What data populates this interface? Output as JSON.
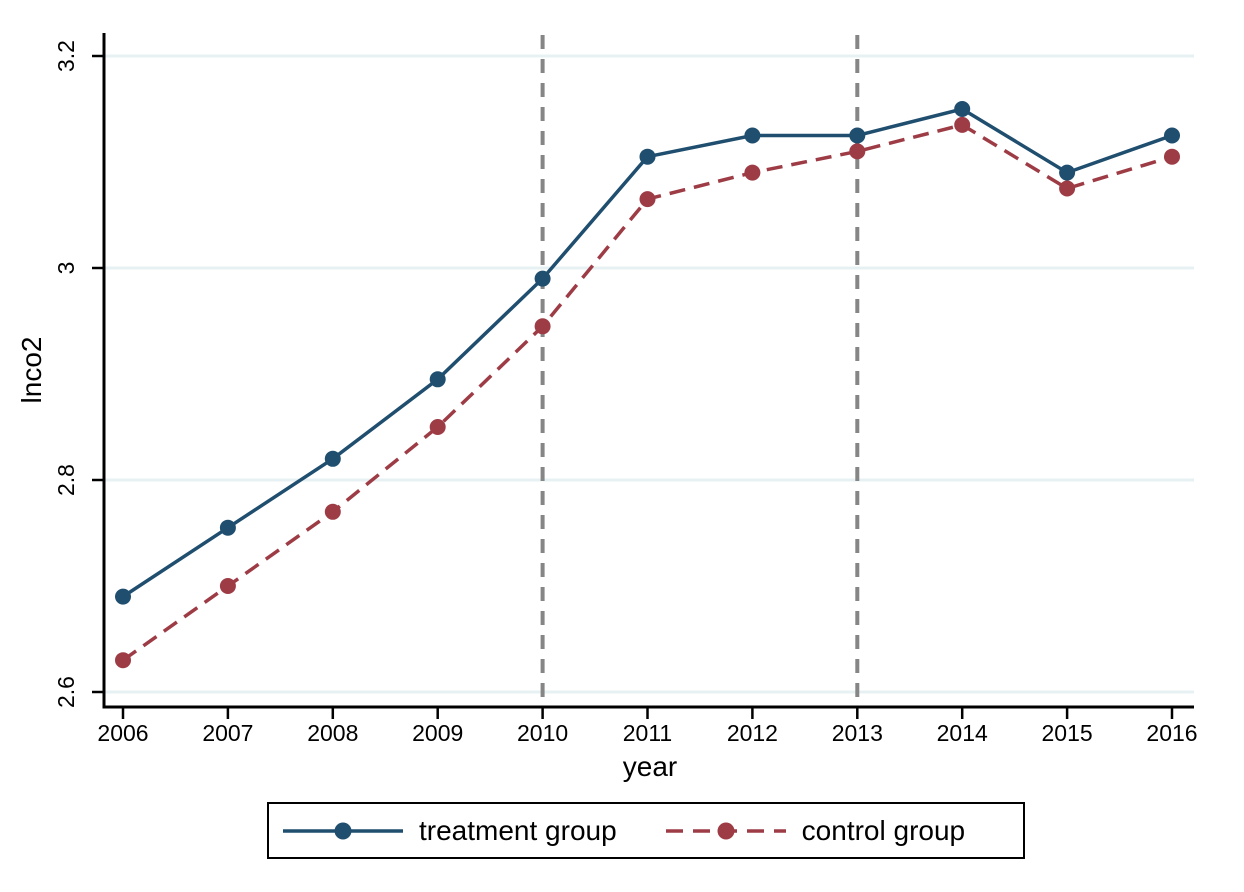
{
  "chart_data": {
    "type": "line",
    "title": "",
    "xlabel": "year",
    "ylabel": "lnco2",
    "x": [
      2006,
      2007,
      2008,
      2009,
      2010,
      2011,
      2012,
      2013,
      2014,
      2015,
      2016
    ],
    "x_tick_labels": [
      "2006",
      "2007",
      "2008",
      "2009",
      "2010",
      "2011",
      "2012",
      "2013",
      "2014",
      "2015",
      "2016"
    ],
    "y_ticks": [
      2.6,
      2.8,
      3,
      3.2
    ],
    "y_tick_labels": [
      "2.6",
      "2.8",
      "3",
      "3.2"
    ],
    "ylim": [
      2.59,
      3.22
    ],
    "grid": true,
    "gridline_color": "#e7f0f2",
    "legend_position": "bottom",
    "series": [
      {
        "name": "treatment group",
        "color": "#1f4e6f",
        "line_style": "solid",
        "marker": "circle",
        "values": [
          2.69,
          2.755,
          2.82,
          2.895,
          2.99,
          3.105,
          3.125,
          3.125,
          3.15,
          3.09,
          3.125
        ]
      },
      {
        "name": "control group",
        "color": "#9e3c46",
        "line_style": "dashed",
        "marker": "circle",
        "values": [
          2.63,
          2.7,
          2.77,
          2.85,
          2.945,
          3.065,
          3.09,
          3.11,
          3.135,
          3.075,
          3.105
        ]
      }
    ],
    "reference_lines": [
      {
        "axis": "x",
        "value": 2010,
        "color": "#868686",
        "style": "dashed"
      },
      {
        "axis": "x",
        "value": 2013,
        "color": "#868686",
        "style": "dashed"
      }
    ]
  },
  "axis_titles": {
    "x": "year",
    "y": "lnco2"
  },
  "colors": {
    "background": "#ffffff",
    "axis": "#000000",
    "grid": "#e7f0f2",
    "reference_line": "#868686",
    "treatment": "#1f4e6f",
    "control": "#9e3c46"
  }
}
